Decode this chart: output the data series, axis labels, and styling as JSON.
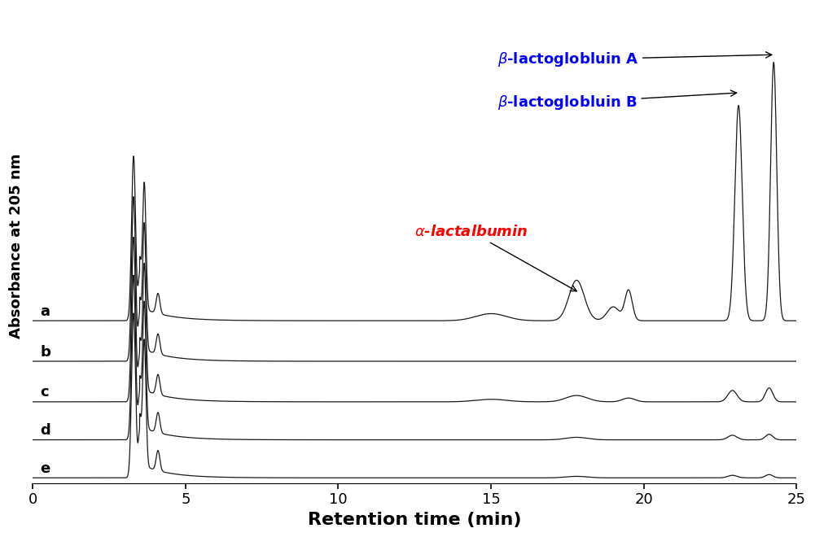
{
  "xlabel": "Retention time (min)",
  "ylabel": "Absorbance at 205 nm",
  "xlim": [
    0,
    25
  ],
  "x_ticks": [
    0,
    5,
    10,
    15,
    20,
    25
  ],
  "line_color": "#1a1a1a",
  "bg_color": "#ffffff",
  "labels": [
    "a",
    "b",
    "c",
    "d",
    "e"
  ],
  "curve_offsets": [
    0.62,
    0.46,
    0.3,
    0.15,
    0.0
  ],
  "annotation_alpha_text": "α-lactalbumin",
  "annotation_betaB_text": "β-lactoglobluin B",
  "annotation_betaA_text": "β-lactoglobluin A"
}
